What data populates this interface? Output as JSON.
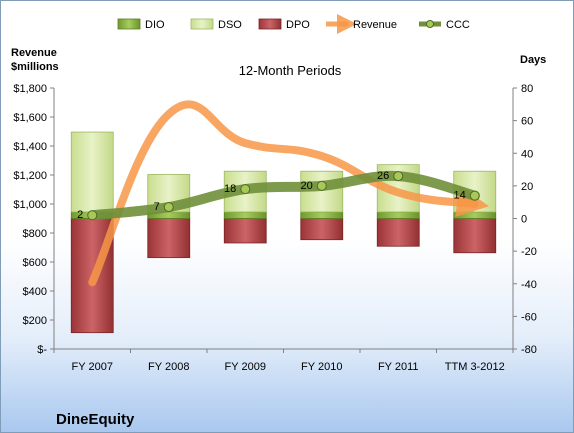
{
  "company": "DineEquity",
  "chart_data": {
    "type": "bar",
    "title": "12-Month Periods",
    "ylabel_left": "Revenue\n$millions",
    "ylabel_right": "Days",
    "categories": [
      "FY 2007",
      "FY 2008",
      "FY 2009",
      "FY 2010",
      "FY 2011",
      "TTM 3-2012"
    ],
    "left_axis": {
      "ylim": [
        0,
        1800
      ],
      "ticks": [
        0,
        200,
        400,
        600,
        800,
        1000,
        1200,
        1400,
        1600,
        1800
      ],
      "tick_labels": [
        "$-",
        "$200",
        "$400",
        "$600",
        "$800",
        "$1,000",
        "$1,200",
        "$1,400",
        "$1,600",
        "$1,800"
      ]
    },
    "right_axis": {
      "ylim": [
        -80,
        80
      ],
      "ticks": [
        -80,
        -60,
        -40,
        -20,
        0,
        20,
        40,
        60,
        80
      ],
      "tick_labels": [
        "-80",
        "-60",
        "-40",
        "-20",
        "0",
        "20",
        "40",
        "60",
        "80"
      ]
    },
    "series": [
      {
        "name": "DIO",
        "axis": "right",
        "kind": "stacked-bar",
        "values": [
          4,
          4,
          4,
          4,
          4,
          4
        ],
        "color": "#8fb84a"
      },
      {
        "name": "DSO",
        "axis": "right",
        "kind": "stacked-bar",
        "values": [
          49,
          23,
          25,
          25,
          29,
          25
        ],
        "color": "#d7e8a8"
      },
      {
        "name": "DPO",
        "axis": "right",
        "kind": "bar-negative",
        "values": [
          -70,
          -24,
          -15,
          -13,
          -17,
          -21
        ],
        "color": "#b5474a"
      },
      {
        "name": "Revenue",
        "axis": "left",
        "kind": "line",
        "values": [
          460,
          1620,
          1420,
          1330,
          1080,
          1000
        ],
        "color": "#f79646"
      },
      {
        "name": "CCC",
        "axis": "right",
        "kind": "line",
        "values": [
          2,
          7,
          18,
          20,
          26,
          14
        ],
        "labels": [
          "2",
          "7",
          "18",
          "20",
          "26",
          "14"
        ],
        "color": "#6f8f3a"
      }
    ],
    "legend": {
      "position": "top",
      "items": [
        "DIO",
        "DSO",
        "DPO",
        "Revenue",
        "CCC"
      ]
    },
    "grid": false
  }
}
